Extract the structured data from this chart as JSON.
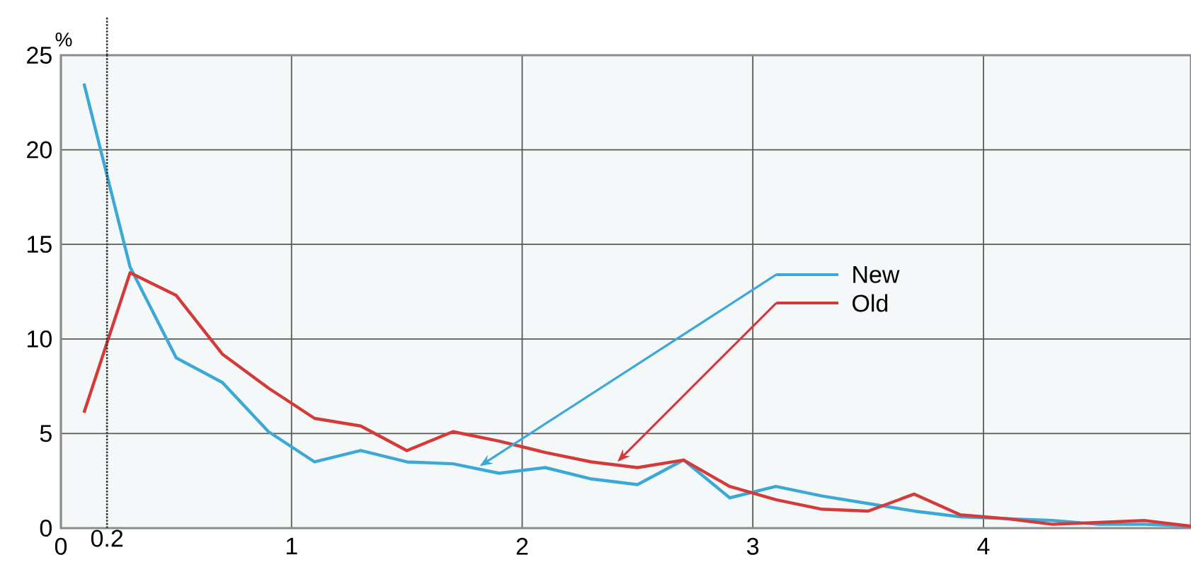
{
  "chart_data": {
    "type": "line",
    "ylabel": "%",
    "x": [
      0.1,
      0.3,
      0.5,
      0.7,
      0.9,
      1.1,
      1.3,
      1.5,
      1.7,
      1.9,
      2.1,
      2.3,
      2.5,
      2.7,
      2.9,
      3.1,
      3.3,
      3.5,
      3.7,
      3.9,
      4.1,
      4.3,
      4.5,
      4.7,
      4.9
    ],
    "series": [
      {
        "name": "New",
        "color": "#3ba8d6",
        "values": [
          23.5,
          13.8,
          9.0,
          7.7,
          5.1,
          3.5,
          4.1,
          3.5,
          3.4,
          2.9,
          3.2,
          2.6,
          2.3,
          3.6,
          1.6,
          2.2,
          1.7,
          1.3,
          0.9,
          0.6,
          0.5,
          0.4,
          0.2,
          0.2,
          0.1
        ]
      },
      {
        "name": "Old",
        "color": "#d43a3a",
        "values": [
          6.1,
          13.5,
          12.3,
          9.2,
          7.4,
          5.8,
          5.4,
          4.1,
          5.1,
          4.6,
          4.0,
          3.5,
          3.2,
          3.6,
          2.2,
          1.5,
          1.0,
          0.9,
          1.8,
          0.7,
          0.5,
          0.2,
          0.3,
          0.4,
          0.1
        ]
      }
    ],
    "xlim": [
      0,
      4.9
    ],
    "ylim": [
      0,
      25
    ],
    "xticks": [
      0,
      1,
      2,
      3,
      4
    ],
    "yticks": [
      0,
      5,
      10,
      15,
      20,
      25
    ],
    "ref_lines": [
      {
        "axis": "x",
        "value": 0.2,
        "label": "0.2",
        "line_style": "dotted",
        "color": "#333333"
      }
    ],
    "grid": true,
    "legend": "center",
    "marker": "none",
    "line_style": "solid"
  }
}
